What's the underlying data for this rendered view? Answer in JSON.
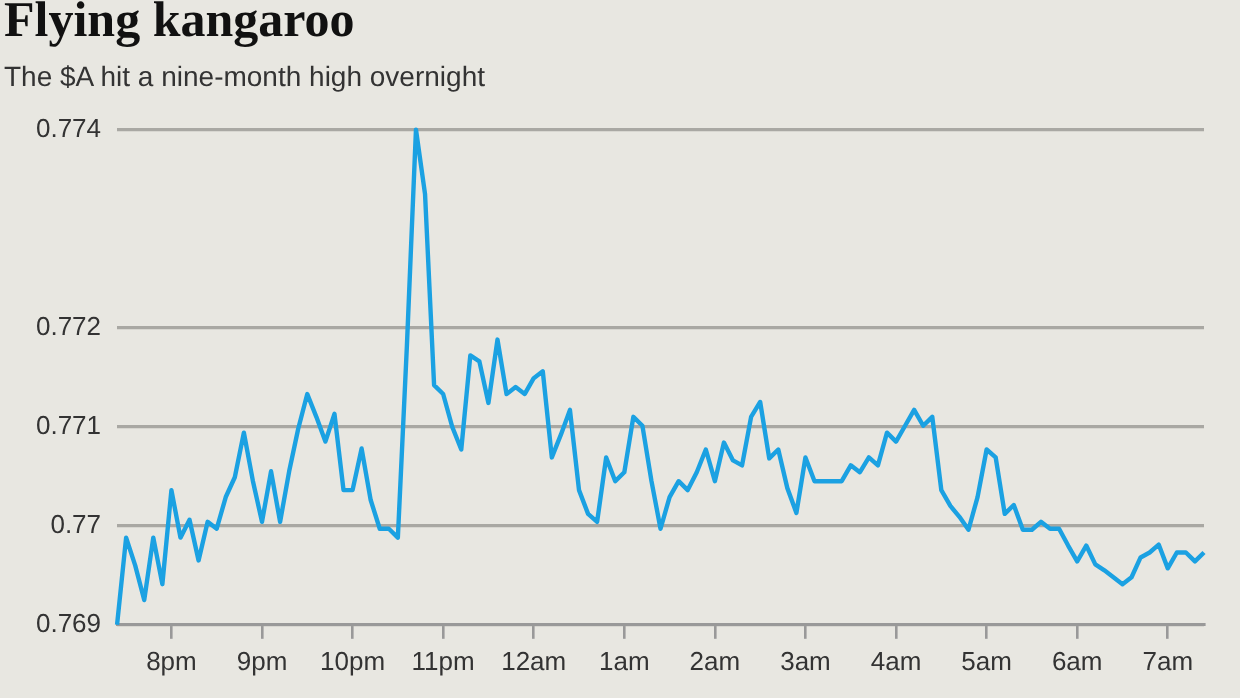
{
  "chart_data": {
    "type": "line",
    "title": "Flying kangaroo",
    "subtitle": "The $A hit a nine-month high overnight",
    "categories": [
      null,
      null,
      null,
      null,
      null,
      null,
      "8pm",
      null,
      null,
      null,
      null,
      null,
      null,
      null,
      null,
      null,
      "9pm",
      null,
      null,
      null,
      null,
      null,
      null,
      null,
      null,
      null,
      "10pm",
      null,
      null,
      null,
      null,
      null,
      null,
      null,
      null,
      null,
      "11pm",
      null,
      null,
      null,
      null,
      null,
      null,
      null,
      null,
      null,
      "12am",
      null,
      null,
      null,
      null,
      null,
      null,
      null,
      null,
      null,
      "1am",
      null,
      null,
      null,
      null,
      null,
      null,
      null,
      null,
      null,
      "2am",
      null,
      null,
      null,
      null,
      null,
      null,
      null,
      null,
      null,
      "3am",
      null,
      null,
      null,
      null,
      null,
      null,
      null,
      null,
      null,
      "4am",
      null,
      null,
      null,
      null,
      null,
      null,
      null,
      null,
      null,
      "5am",
      null,
      null,
      null,
      null,
      null,
      null,
      null,
      null,
      null,
      "6am",
      null,
      null,
      null,
      null,
      null,
      null,
      null,
      null,
      null,
      "7am",
      null,
      null,
      null,
      null
    ],
    "series": [
      {
        "color": "#1ba1e2",
        "values": [
          0.769,
          0.76988,
          0.7696,
          0.76925,
          0.76988,
          0.76941,
          0.77036,
          0.76988,
          0.77006,
          0.76965,
          0.77004,
          0.76997,
          0.77029,
          0.77049,
          0.77094,
          0.77045,
          0.77004,
          0.77055,
          0.77004,
          0.77055,
          0.77098,
          0.77133,
          0.7711,
          0.77085,
          0.77113,
          0.77036,
          0.77036,
          0.77078,
          0.77026,
          0.76997,
          0.76997,
          0.76988,
          0.77182,
          0.774,
          0.77335,
          0.77142,
          0.77133,
          0.771,
          0.77077,
          0.77172,
          0.77166,
          0.77124,
          0.77188,
          0.77133,
          0.7714,
          0.77133,
          0.77149,
          0.77156,
          0.77069,
          0.77092,
          0.77117,
          0.77036,
          0.77012,
          0.77004,
          0.77069,
          0.77045,
          0.77054,
          0.7711,
          0.77101,
          0.77045,
          0.76997,
          0.77029,
          0.77045,
          0.77036,
          0.77054,
          0.77077,
          0.77045,
          0.77084,
          0.77066,
          0.77061,
          0.7711,
          0.77125,
          0.77068,
          0.77077,
          0.77038,
          0.77013,
          0.77069,
          0.77045,
          0.77045,
          0.77045,
          0.77045,
          0.77061,
          0.77054,
          0.77069,
          0.77061,
          0.77094,
          0.77085,
          0.77101,
          0.77117,
          0.77101,
          0.7711,
          0.77036,
          0.7702,
          0.77009,
          0.76996,
          0.77029,
          0.77077,
          0.77069,
          0.77012,
          0.77021,
          0.76996,
          0.76996,
          0.77004,
          0.76997,
          0.76997,
          0.7698,
          0.76964,
          0.7698,
          0.76961,
          0.76955,
          0.76948,
          0.76941,
          0.76948,
          0.76968,
          0.76973,
          0.76981,
          0.76957,
          0.76973,
          0.76973,
          0.76964,
          0.76973
        ]
      }
    ],
    "ylim": [
      0.769,
      0.774
    ],
    "yticks": [
      0.769,
      0.77,
      0.771,
      0.772,
      0.774
    ],
    "grid": "y",
    "legend": false
  }
}
